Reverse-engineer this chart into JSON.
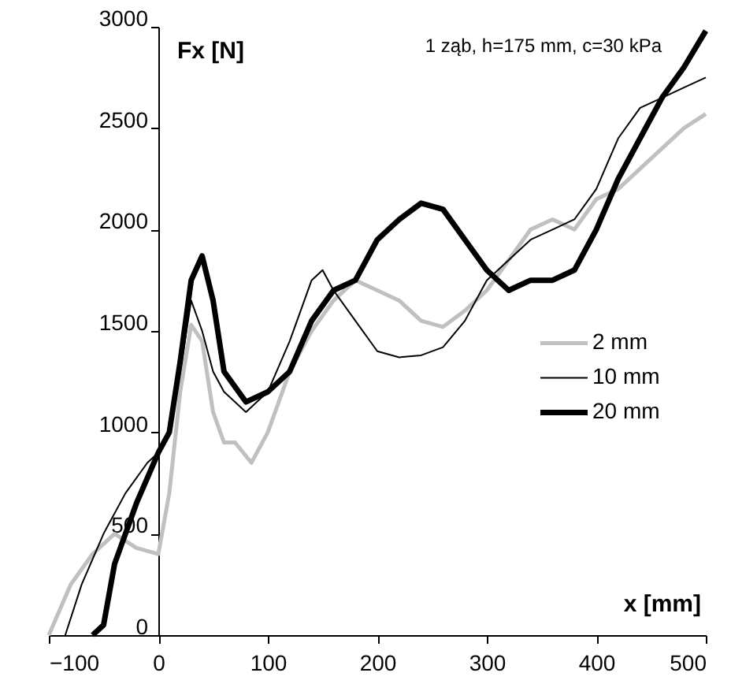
{
  "chart_data": {
    "type": "line",
    "xlabel": "x [mm]",
    "ylabel": "Fx [N]",
    "annotations": [
      "1 ząb, h=175 mm, c=30 kPa"
    ],
    "xlim": [
      -100,
      500
    ],
    "xticks": [
      -100,
      0,
      100,
      200,
      300,
      400,
      500
    ],
    "ylim": [
      0,
      3000
    ],
    "yticks": [
      0,
      500,
      1000,
      1500,
      2000,
      2500,
      3000
    ],
    "grid": false,
    "legend": "right",
    "marker": "none",
    "line_style": "solid",
    "series": [
      {
        "name": "2 mm",
        "color": "#c0c0c0",
        "x": [
          -100,
          -80,
          -60,
          -40,
          -20,
          0,
          10,
          20,
          30,
          40,
          50,
          60,
          70,
          85,
          100,
          120,
          140,
          160,
          180,
          200,
          220,
          240,
          260,
          280,
          300,
          320,
          340,
          360,
          380,
          400,
          420,
          440,
          460,
          480,
          500
        ],
        "values": [
          0,
          250,
          400,
          500,
          430,
          400,
          700,
          1200,
          1530,
          1450,
          1100,
          950,
          950,
          850,
          1000,
          1300,
          1500,
          1650,
          1750,
          1700,
          1650,
          1550,
          1520,
          1600,
          1700,
          1850,
          2000,
          2050,
          2000,
          2150,
          2200,
          2300,
          2400,
          2500,
          2570
        ]
      },
      {
        "name": "10 mm",
        "color": "#000000",
        "x": [
          -85,
          -70,
          -50,
          -30,
          -10,
          0,
          10,
          20,
          30,
          40,
          50,
          60,
          80,
          100,
          120,
          140,
          150,
          160,
          180,
          200,
          220,
          240,
          260,
          280,
          300,
          320,
          340,
          360,
          380,
          400,
          420,
          440,
          460,
          480,
          500
        ],
        "values": [
          0,
          250,
          500,
          700,
          850,
          900,
          1000,
          1300,
          1650,
          1500,
          1300,
          1200,
          1100,
          1200,
          1450,
          1750,
          1800,
          1700,
          1550,
          1400,
          1370,
          1380,
          1420,
          1550,
          1750,
          1850,
          1950,
          2000,
          2050,
          2200,
          2450,
          2600,
          2650,
          2700,
          2750
        ]
      },
      {
        "name": "20 mm",
        "color": "#000000",
        "x": [
          -60,
          -50,
          -40,
          -20,
          0,
          10,
          20,
          30,
          40,
          50,
          60,
          80,
          100,
          120,
          140,
          160,
          180,
          200,
          220,
          240,
          260,
          280,
          300,
          320,
          340,
          360,
          380,
          400,
          420,
          440,
          460,
          480,
          500
        ],
        "values": [
          0,
          50,
          350,
          650,
          900,
          1000,
          1350,
          1750,
          1870,
          1650,
          1300,
          1150,
          1200,
          1300,
          1550,
          1700,
          1750,
          1950,
          2050,
          2130,
          2100,
          1950,
          1800,
          1700,
          1750,
          1750,
          1800,
          2000,
          2250,
          2450,
          2650,
          2800,
          2980
        ]
      }
    ]
  }
}
